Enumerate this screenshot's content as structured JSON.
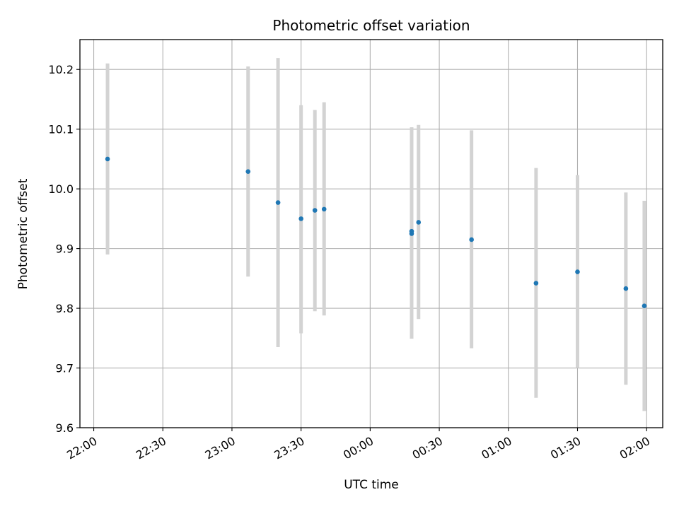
{
  "chart_data": {
    "type": "scatter",
    "title": "Photometric offset variation",
    "xlabel": "UTC time",
    "ylabel": "Photometric offset",
    "x_tick_labels": [
      "22:00",
      "22:30",
      "23:00",
      "23:30",
      "00:00",
      "00:30",
      "01:00",
      "01:30",
      "02:00"
    ],
    "y_tick_labels": [
      "9.6",
      "9.7",
      "9.8",
      "9.9",
      "10.0",
      "10.1",
      "10.2"
    ],
    "xlim": [
      "21:54",
      "02:07"
    ],
    "ylim": [
      9.6,
      10.25
    ],
    "grid": true,
    "colors": {
      "point": "#1f77b4",
      "errorbar": "#d3d3d3",
      "grid": "#b0b0b0"
    },
    "points": [
      {
        "x": "22:06",
        "y": 10.05,
        "ylow": 9.89,
        "yhigh": 10.21
      },
      {
        "x": "23:07",
        "y": 10.029,
        "ylow": 9.853,
        "yhigh": 10.205
      },
      {
        "x": "23:20",
        "y": 9.977,
        "ylow": 9.735,
        "yhigh": 10.219
      },
      {
        "x": "23:30",
        "y": 9.95,
        "ylow": 9.758,
        "yhigh": 10.14
      },
      {
        "x": "23:36",
        "y": 9.964,
        "ylow": 9.795,
        "yhigh": 10.132
      },
      {
        "x": "23:40",
        "y": 9.966,
        "ylow": 9.788,
        "yhigh": 10.145
      },
      {
        "x": "00:18",
        "y": 9.925,
        "ylow": 9.749,
        "yhigh": 10.103
      },
      {
        "x": "00:18",
        "y": 9.929,
        "ylow": 9.753,
        "yhigh": 10.103
      },
      {
        "x": "00:21",
        "y": 9.944,
        "ylow": 9.782,
        "yhigh": 10.107
      },
      {
        "x": "00:44",
        "y": 9.915,
        "ylow": 9.733,
        "yhigh": 10.098
      },
      {
        "x": "01:12",
        "y": 9.842,
        "ylow": 9.65,
        "yhigh": 10.035
      },
      {
        "x": "01:30",
        "y": 9.861,
        "ylow": 9.7,
        "yhigh": 10.023
      },
      {
        "x": "01:51",
        "y": 9.833,
        "ylow": 9.672,
        "yhigh": 9.994
      },
      {
        "x": "01:59",
        "y": 9.804,
        "ylow": 9.628,
        "yhigh": 9.98
      }
    ]
  }
}
